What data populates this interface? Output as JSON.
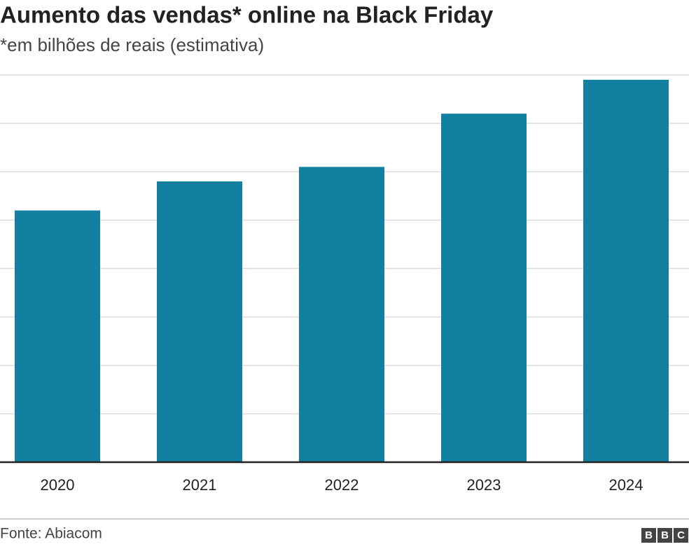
{
  "chart_data": {
    "type": "bar",
    "title": "Aumento das vendas* online na Black Friday",
    "subtitle": "*em bilhões de reais (estimativa)",
    "categories": [
      "2020",
      "2021",
      "2022",
      "2023",
      "2024"
    ],
    "values": [
      5.2,
      5.8,
      6.1,
      7.2,
      7.9
    ],
    "color": "#1380a1",
    "ylim": [
      0,
      8
    ],
    "yticks": [
      0,
      1,
      2,
      3,
      4,
      5,
      6,
      7,
      8
    ],
    "grid": true,
    "source": "Fonte: Abiacom",
    "logo": [
      "B",
      "B",
      "C"
    ]
  }
}
